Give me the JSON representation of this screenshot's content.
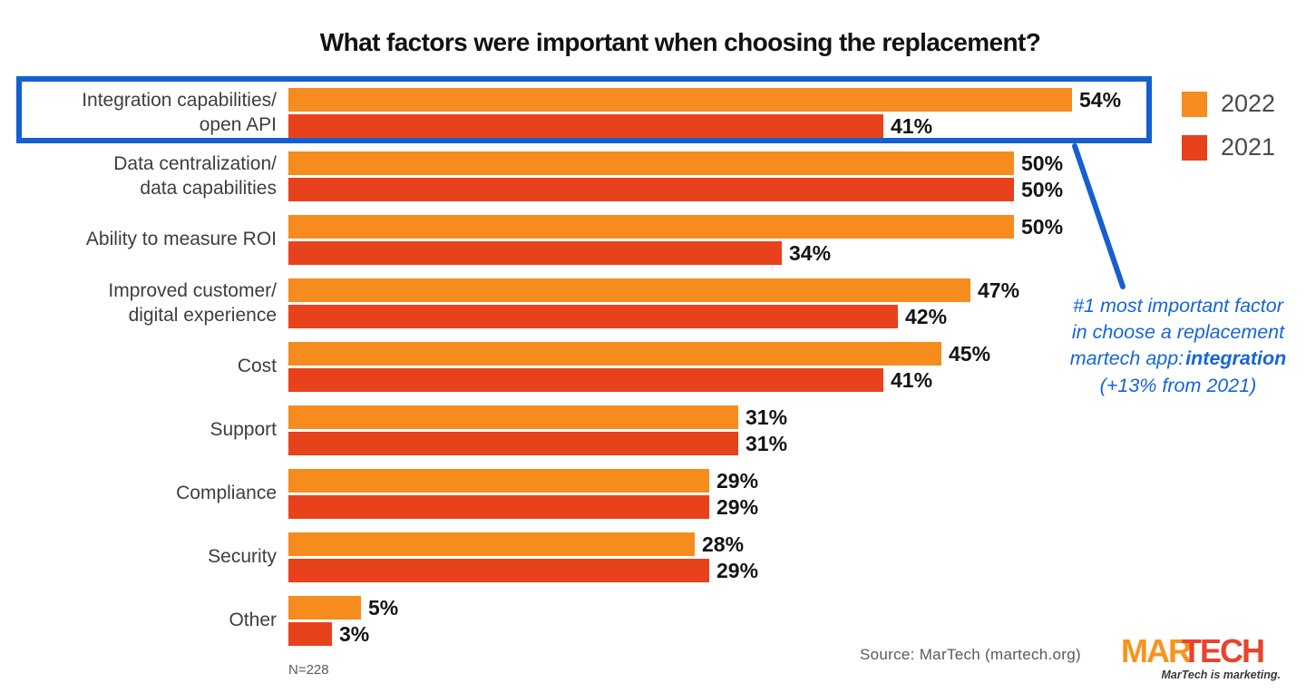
{
  "title": "What factors were important when choosing the replacement?",
  "legend": {
    "items": [
      {
        "label": "2022",
        "color": "#F68C1E"
      },
      {
        "label": "2021",
        "color": "#E8421C"
      }
    ]
  },
  "chart_data": {
    "type": "bar",
    "orientation": "horizontal",
    "unit": "%",
    "xlim": [
      0,
      60
    ],
    "categories": [
      "Integration capabilities/\nopen API",
      "Data centralization/\ndata capabilities",
      "Ability to measure ROI",
      "Improved customer/\ndigital experience",
      "Cost",
      "Support",
      "Compliance",
      "Security",
      "Other"
    ],
    "series": [
      {
        "name": "2022",
        "color": "#F68C1E",
        "values": [
          54,
          50,
          50,
          47,
          45,
          31,
          29,
          28,
          5
        ]
      },
      {
        "name": "2021",
        "color": "#E8421C",
        "values": [
          41,
          50,
          34,
          42,
          41,
          31,
          29,
          29,
          3
        ]
      }
    ],
    "legend_position": "top-right",
    "grid": false
  },
  "annotation": {
    "line1": "#1 most important factor",
    "line2": "in choose a replacement",
    "line3_prefix": "martech app:",
    "line3_bold": "integration",
    "line4": "(+13% from 2021)",
    "color": "#1565D8"
  },
  "highlight": {
    "color": "#155FD0",
    "highlighted_category": "Integration capabilities/ open API"
  },
  "footer": {
    "n_label": "N=228",
    "source": "Source: MarTech (martech.org)"
  },
  "logo": {
    "part1": "MAR",
    "part2": "TECH",
    "tagline": "MarTech is marketing."
  }
}
